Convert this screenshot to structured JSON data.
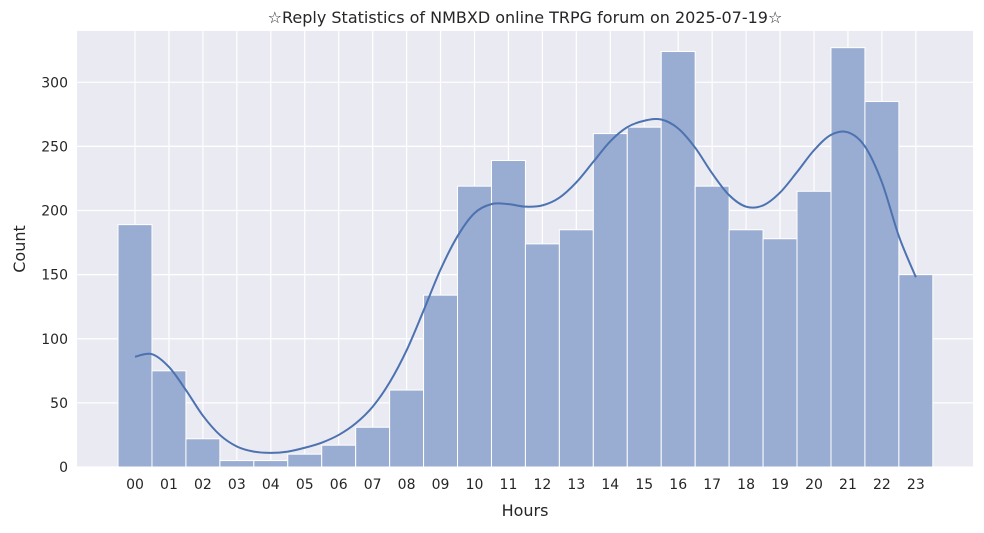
{
  "chart_data": {
    "type": "bar",
    "title": "☆Reply Statistics of NMBXD online TRPG forum on 2025-07-19☆",
    "xlabel": "Hours",
    "ylabel": "Count",
    "categories": [
      "00",
      "01",
      "02",
      "03",
      "04",
      "05",
      "06",
      "07",
      "08",
      "09",
      "10",
      "11",
      "12",
      "13",
      "14",
      "15",
      "16",
      "17",
      "18",
      "19",
      "20",
      "21",
      "22",
      "23"
    ],
    "values": [
      189,
      75,
      22,
      5,
      5,
      10,
      17,
      31,
      60,
      134,
      219,
      239,
      174,
      185,
      260,
      265,
      324,
      219,
      185,
      178,
      215,
      327,
      285,
      150
    ],
    "y_ticks": [
      0,
      50,
      100,
      150,
      200,
      250,
      300
    ],
    "ylim": [
      0,
      340
    ],
    "kde_curve": {
      "x": [
        0,
        0.5,
        1,
        1.5,
        2,
        2.5,
        3,
        3.5,
        4,
        4.5,
        5,
        5.5,
        6,
        6.5,
        7,
        7.5,
        8,
        8.5,
        9,
        9.5,
        10,
        10.5,
        11,
        11.5,
        12,
        12.5,
        13,
        13.5,
        14,
        14.5,
        15,
        15.5,
        16,
        16.5,
        17,
        17.5,
        18,
        18.5,
        19,
        19.5,
        20,
        20.5,
        21,
        21.5,
        22,
        22.5,
        23
      ],
      "y": [
        86,
        88,
        78,
        60,
        40,
        25,
        16,
        12,
        11,
        12,
        15,
        19,
        25,
        34,
        47,
        66,
        91,
        122,
        154,
        180,
        198,
        205,
        205,
        203,
        204,
        210,
        222,
        238,
        254,
        265,
        270,
        271,
        264,
        249,
        229,
        212,
        203,
        204,
        214,
        230,
        247,
        259,
        261,
        250,
        222,
        180,
        148
      ]
    },
    "grid": true,
    "colors": {
      "bar_fill": "#99acd1",
      "bar_edge": "#ffffff",
      "kde_line": "#4c72b0",
      "plot_bg": "#eaeaf2",
      "grid": "#ffffff"
    }
  }
}
